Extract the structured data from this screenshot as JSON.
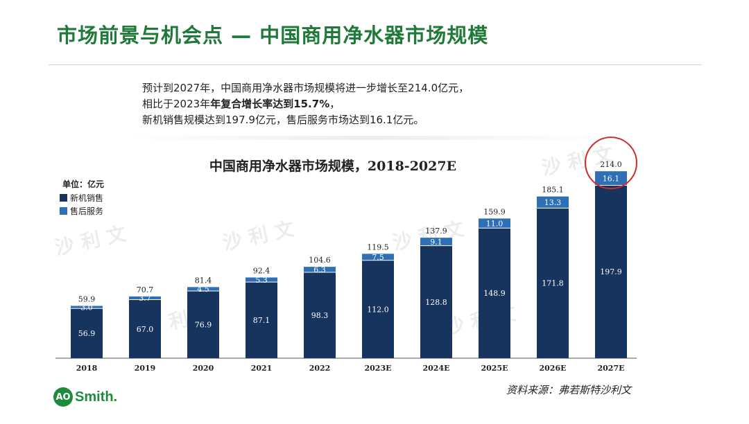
{
  "slide": {
    "title": "市场前景与机会点 — 中国商用净水器市场规模",
    "summary_line1": "预计到2027年，中国商用净水器市场规模将进一步增长至214.0亿元，",
    "summary_line2_pre": "相比于2023年",
    "summary_line2_bold": "年复合增长率达到15.7%",
    "summary_line2_post": "，",
    "summary_line3": "新机销售规模达到197.9亿元，售后服务市场达到16.1亿元。",
    "source": "资料来源：弗若斯特沙利文",
    "logo_mark": "AO",
    "logo_text": "Smith.",
    "watermark": "沙利文"
  },
  "colors": {
    "title_green": "#1f7a3a",
    "new_sales": "#17345f",
    "after_sales": "#2e6fb5",
    "highlight_circle": "#d42a2a"
  },
  "chart_data": {
    "type": "bar",
    "stacked": true,
    "title": "中国商用净水器市场规模，2018-2027E",
    "unit_label": "单位：亿元",
    "categories": [
      "2018",
      "2019",
      "2020",
      "2021",
      "2022",
      "2023E",
      "2024E",
      "2025E",
      "2026E",
      "2027E"
    ],
    "series": [
      {
        "name": "新机销售",
        "values": [
          56.9,
          67.0,
          76.9,
          87.1,
          98.3,
          112.0,
          128.8,
          148.9,
          171.8,
          197.9
        ]
      },
      {
        "name": "售后服务",
        "values": [
          3.0,
          3.7,
          4.5,
          5.3,
          6.3,
          7.5,
          9.1,
          11.0,
          13.3,
          16.1
        ]
      }
    ],
    "totals": [
      59.9,
      70.7,
      81.4,
      92.4,
      104.6,
      119.5,
      137.9,
      159.9,
      185.1,
      214.0
    ],
    "legend_position": "top-left",
    "ylim": [
      0,
      230
    ],
    "highlight_category": "2027E"
  }
}
